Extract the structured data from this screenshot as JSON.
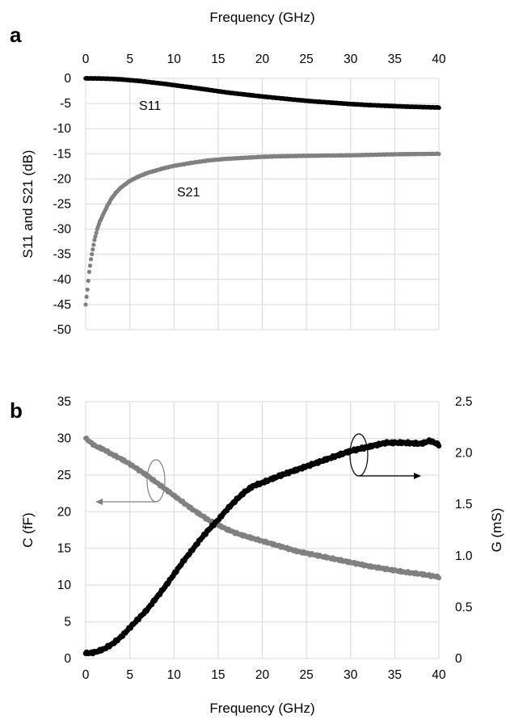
{
  "chart_data": [
    {
      "panel_label": "a",
      "type": "scatter",
      "xlabel": "Frequency (GHz)",
      "ylabel": "S11 and S21 (dB)",
      "xlim": [
        0,
        40
      ],
      "ylim": [
        -50,
        0
      ],
      "x_ticks": [
        0,
        5,
        10,
        15,
        20,
        25,
        30,
        35,
        40
      ],
      "y_ticks": [
        0,
        -5,
        -10,
        -15,
        -20,
        -25,
        -30,
        -35,
        -40,
        -45,
        -50
      ],
      "x_axis_position": "top",
      "grid": true,
      "legend": "none",
      "series": [
        {
          "name": "S11",
          "color": "#000000",
          "x": [
            0,
            1,
            2,
            3,
            4,
            5,
            6,
            7,
            8,
            9,
            10,
            12,
            14,
            16,
            18,
            20,
            22,
            24,
            26,
            28,
            30,
            32,
            34,
            36,
            38,
            40
          ],
          "y": [
            0,
            0,
            -0.05,
            -0.1,
            -0.2,
            -0.35,
            -0.5,
            -0.7,
            -0.9,
            -1.1,
            -1.35,
            -1.8,
            -2.3,
            -2.8,
            -3.2,
            -3.6,
            -3.95,
            -4.3,
            -4.6,
            -4.85,
            -5.1,
            -5.3,
            -5.45,
            -5.6,
            -5.7,
            -5.8
          ]
        },
        {
          "name": "S21",
          "color": "#808080",
          "x": [
            0,
            0.2,
            0.4,
            0.6,
            0.8,
            1.0,
            1.3,
            1.6,
            2,
            2.5,
            3,
            3.5,
            4,
            5,
            6,
            7,
            8,
            9,
            10,
            12,
            14,
            16,
            18,
            20,
            22,
            25,
            30,
            35,
            40
          ],
          "y": [
            -45,
            -42,
            -38.5,
            -36,
            -34,
            -32.2,
            -30,
            -28.5,
            -27,
            -25.2,
            -23.7,
            -22.6,
            -21.7,
            -20.4,
            -19.5,
            -18.8,
            -18.3,
            -17.8,
            -17.4,
            -16.8,
            -16.3,
            -16,
            -15.8,
            -15.6,
            -15.5,
            -15.4,
            -15.3,
            -15.1,
            -15
          ]
        }
      ],
      "annotations": [
        "S11",
        "S21"
      ]
    },
    {
      "panel_label": "b",
      "type": "scatter",
      "xlabel": "Frequency (GHz)",
      "ylabel": "C (fF)",
      "ylabel_right": "G (mS)",
      "xlim": [
        0,
        40
      ],
      "ylim": [
        0,
        35
      ],
      "ylim_right": [
        0,
        2.5
      ],
      "x_ticks": [
        0,
        5,
        10,
        15,
        20,
        25,
        30,
        35,
        40
      ],
      "y_ticks": [
        0,
        5,
        10,
        15,
        20,
        25,
        30,
        35
      ],
      "y_ticks_right": [
        "0",
        "0.5",
        "1.0",
        "1.5",
        "2.0",
        "2.5"
      ],
      "grid": true,
      "legend": "none",
      "series": [
        {
          "name": "C",
          "axis": "left",
          "color": "#808080",
          "x": [
            0,
            1,
            2,
            3,
            4,
            5,
            6,
            7,
            8,
            9,
            10,
            11,
            12,
            13,
            14,
            15,
            16,
            17,
            18,
            20,
            22,
            24,
            26,
            28,
            30,
            32,
            34,
            36,
            38,
            40
          ],
          "y": [
            30,
            29,
            28.5,
            27.8,
            27.2,
            26.5,
            25.7,
            24.9,
            24,
            23.1,
            22.2,
            21.3,
            20.4,
            19.6,
            18.8,
            18.2,
            17.6,
            17.1,
            16.7,
            16.0,
            15.3,
            14.6,
            14.1,
            13.6,
            13.1,
            12.6,
            12.2,
            11.8,
            11.5,
            11.1
          ]
        },
        {
          "name": "G",
          "axis": "right",
          "color": "#000000",
          "x": [
            0,
            1,
            2,
            3,
            4,
            5,
            6,
            7,
            8,
            9,
            10,
            11,
            12,
            13,
            14,
            15,
            16,
            17,
            18,
            19,
            20,
            22,
            24,
            26,
            28,
            30,
            32,
            34,
            36,
            38,
            39,
            40
          ],
          "y": [
            0.05,
            0.06,
            0.09,
            0.14,
            0.21,
            0.3,
            0.39,
            0.48,
            0.59,
            0.7,
            0.82,
            0.94,
            1.05,
            1.16,
            1.26,
            1.35,
            1.45,
            1.54,
            1.62,
            1.68,
            1.71,
            1.78,
            1.84,
            1.9,
            1.96,
            2.02,
            2.06,
            2.1,
            2.1,
            2.09,
            2.12,
            2.08
          ]
        }
      ],
      "annotations": []
    }
  ]
}
